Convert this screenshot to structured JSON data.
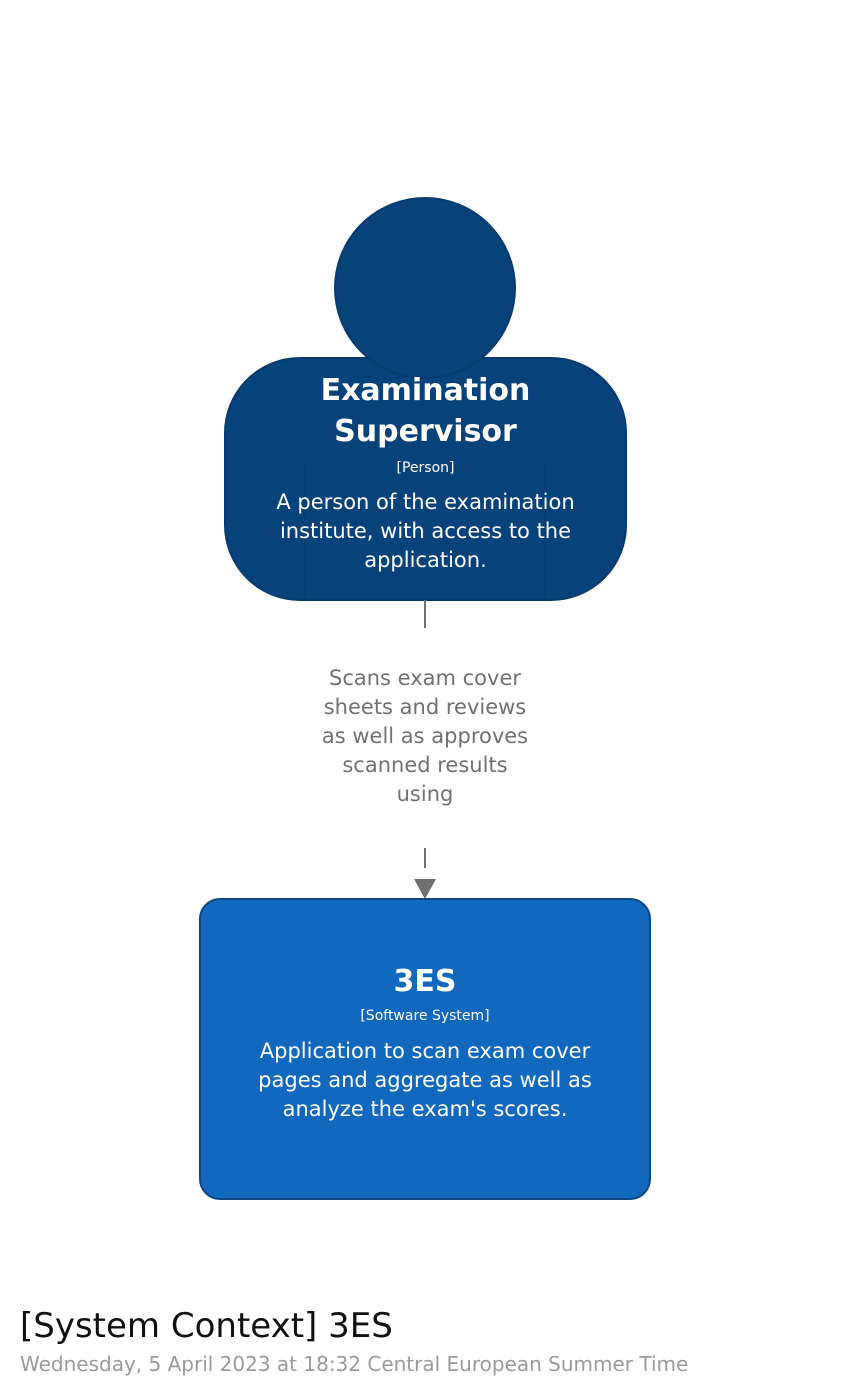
{
  "diagram": {
    "title": "[System Context] 3ES",
    "date": "Wednesday, 5 April 2023 at 18:32 Central European Summer Time"
  },
  "person": {
    "name": "Examination Supervisor",
    "type": "[Person]",
    "description": "A person of the examination institute, with access to the application.",
    "fill_color": "#08427b",
    "border_color": "#073b6f"
  },
  "relationship": {
    "label": "Scans exam cover sheets and reviews as well as approves scanned results using",
    "line_color": "#707070"
  },
  "software_system": {
    "name": "3ES",
    "type": "[Software System]",
    "description": "Application to scan exam cover pages and aggregate as well as analyze the exam's scores.",
    "fill_color": "#1168bd",
    "border_color": "#0b4884"
  }
}
